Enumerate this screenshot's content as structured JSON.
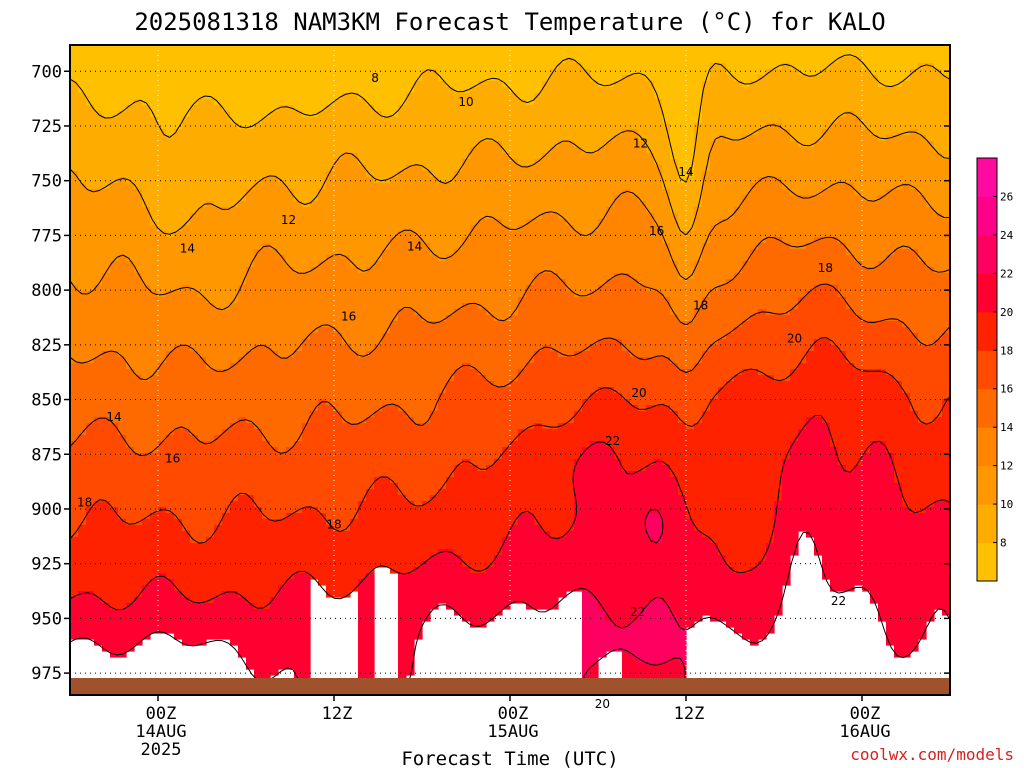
{
  "chart_data": {
    "type": "heatmap",
    "title": "2025081318 NAM3KM Forecast Temperature (°C) for KALO",
    "xlabel": "Forecast Time (UTC)",
    "ylabel": "",
    "y_ticks": [
      "700",
      "725",
      "750",
      "775",
      "800",
      "825",
      "850",
      "875",
      "900",
      "925",
      "950",
      "975"
    ],
    "y_range": [
      688,
      985
    ],
    "y_inverted": true,
    "x_ticks": [
      {
        "hour": 6,
        "lines": [
          "00Z",
          "14AUG",
          "2025"
        ]
      },
      {
        "hour": 18,
        "lines": [
          "12Z"
        ]
      },
      {
        "hour": 30,
        "lines": [
          "00Z",
          "15AUG"
        ]
      },
      {
        "hour": 42,
        "lines": [
          "12Z"
        ]
      },
      {
        "hour": 54,
        "lines": [
          "00Z",
          "16AUG"
        ]
      }
    ],
    "x_range": [
      0,
      60
    ],
    "grid": true,
    "colorbar": {
      "levels": [
        6,
        8,
        10,
        12,
        14,
        16,
        18,
        20,
        22,
        24,
        26,
        28
      ],
      "labels": [
        "8",
        "10",
        "12",
        "14",
        "16",
        "18",
        "20",
        "22",
        "24",
        "26"
      ],
      "colors": [
        "#ffc000",
        "#ffac00",
        "#ff9800",
        "#ff8400",
        "#ff6a00",
        "#ff4a00",
        "#ff2200",
        "#ff0030",
        "#ff0060",
        "#ff0088",
        "#ff0aa0"
      ],
      "placement": "right"
    },
    "ground_color": "#a0522d",
    "contour_levels": [
      8,
      10,
      12,
      14,
      16,
      18,
      20,
      22
    ],
    "contour_labels": [
      {
        "text": "8",
        "hour": 20.8,
        "p": 703
      },
      {
        "text": "10",
        "hour": 27.0,
        "p": 714
      },
      {
        "text": "12",
        "hour": 14.9,
        "p": 768
      },
      {
        "text": "12",
        "hour": 38.9,
        "p": 733
      },
      {
        "text": "14",
        "hour": 8.0,
        "p": 781
      },
      {
        "text": "14",
        "hour": 23.5,
        "p": 780
      },
      {
        "text": "14",
        "hour": 3.0,
        "p": 858
      },
      {
        "text": "14",
        "hour": 42.0,
        "p": 746
      },
      {
        "text": "16",
        "hour": 19.0,
        "p": 812
      },
      {
        "text": "16",
        "hour": 7.0,
        "p": 877
      },
      {
        "text": "16",
        "hour": 40.0,
        "p": 773
      },
      {
        "text": "18",
        "hour": 1.0,
        "p": 897
      },
      {
        "text": "18",
        "hour": 18.0,
        "p": 907
      },
      {
        "text": "18",
        "hour": 43.0,
        "p": 807
      },
      {
        "text": "18",
        "hour": 51.5,
        "p": 790
      },
      {
        "text": "20",
        "hour": 38.8,
        "p": 847
      },
      {
        "text": "20",
        "hour": 49.4,
        "p": 822
      },
      {
        "text": "20",
        "hour": 36.3,
        "p": 989
      },
      {
        "text": "22",
        "hour": 37.0,
        "p": 869
      },
      {
        "text": "22",
        "hour": 38.7,
        "p": 947
      },
      {
        "text": "22",
        "hour": 52.4,
        "p": 942
      }
    ]
  },
  "credit": "coolwx.com/models"
}
